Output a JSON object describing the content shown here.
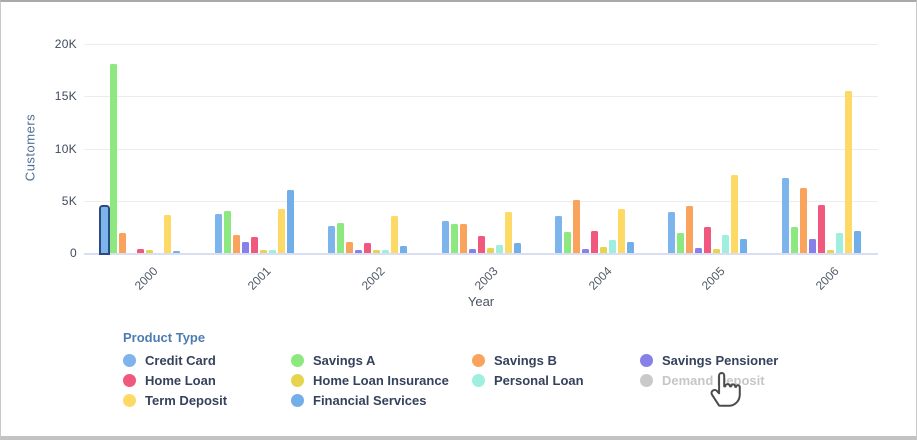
{
  "chart_data": {
    "type": "bar",
    "title": "",
    "xlabel": "Year",
    "ylabel": "Customers",
    "ylim": [
      0,
      20000
    ],
    "yticks": [
      {
        "label": "0",
        "value": 0
      },
      {
        "label": "5K",
        "value": 5000
      },
      {
        "label": "10K",
        "value": 10000
      },
      {
        "label": "15K",
        "value": 15000
      },
      {
        "label": "20K",
        "value": 20000
      }
    ],
    "categories": [
      "2000",
      "2001",
      "2002",
      "2003",
      "2004",
      "2005",
      "2006"
    ],
    "series": [
      {
        "name": "Credit Card",
        "color": "#7db4ec",
        "values": [
          4400,
          3700,
          2600,
          3100,
          3500,
          3900,
          7200
        ]
      },
      {
        "name": "Savings A",
        "color": "#8de97f",
        "values": [
          18100,
          4000,
          2900,
          2800,
          2000,
          1900,
          2500
        ]
      },
      {
        "name": "Savings B",
        "color": "#f9a35c",
        "values": [
          1950,
          1750,
          1100,
          2800,
          5100,
          4500,
          6200
        ]
      },
      {
        "name": "Savings Pensioner",
        "color": "#8681e9",
        "values": [
          0,
          1100,
          250,
          400,
          400,
          450,
          1350
        ]
      },
      {
        "name": "Home Loan",
        "color": "#f1587e",
        "values": [
          400,
          1500,
          1000,
          1600,
          2100,
          2500,
          4550
        ]
      },
      {
        "name": "Home Loan Insurance",
        "color": "#e6d44f",
        "values": [
          250,
          250,
          300,
          500,
          600,
          350,
          250
        ]
      },
      {
        "name": "Personal Loan",
        "color": "#9fefe0",
        "values": [
          0,
          300,
          300,
          800,
          1200,
          1700,
          1900
        ]
      },
      {
        "name": "Demand Deposit",
        "color": "#c9c9c9",
        "disabled": true,
        "values": null
      },
      {
        "name": "Term Deposit",
        "color": "#fdd965",
        "values": [
          3600,
          4200,
          3500,
          3900,
          4200,
          7500,
          15500
        ]
      },
      {
        "name": "Financial Services",
        "color": "#72aee8",
        "values": [
          150,
          6000,
          700,
          1000,
          1100,
          1300,
          2150
        ]
      }
    ],
    "legend_title": "Product Type",
    "legend_position": "bottom",
    "grid": true,
    "highlighted_bar": {
      "category": "2000",
      "series": "Credit Card"
    },
    "cursor": {
      "type": "hand-pointer",
      "over": "Demand Deposit"
    }
  }
}
